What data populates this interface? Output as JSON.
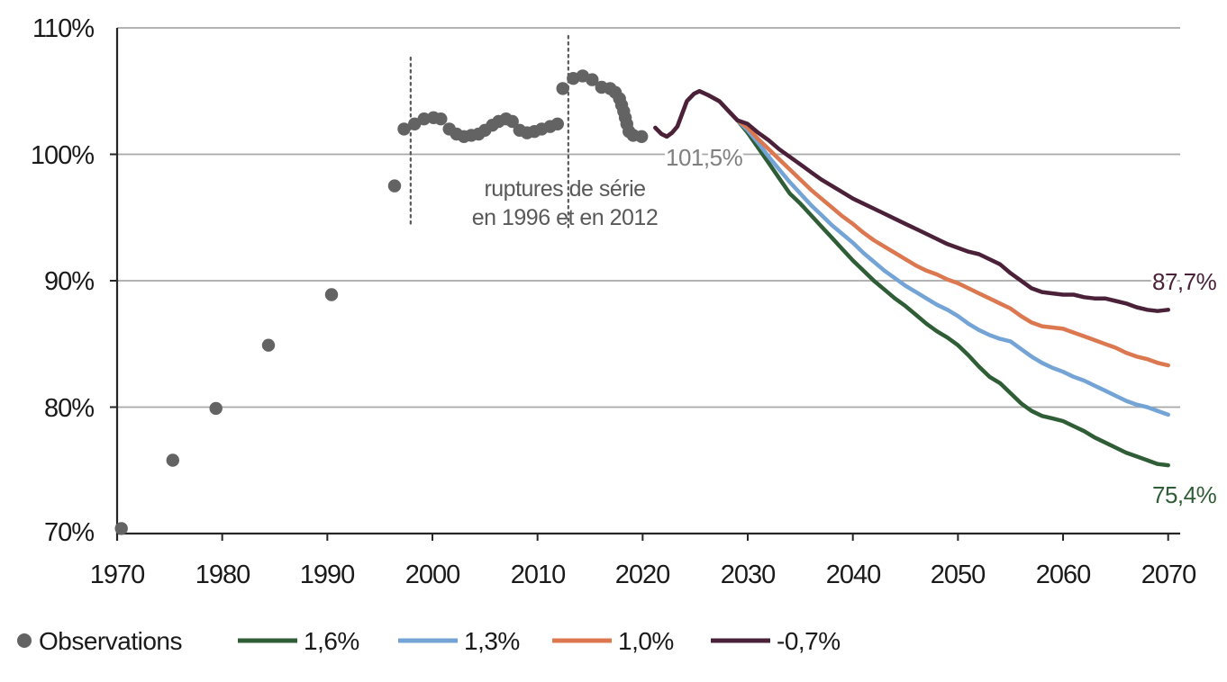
{
  "chart_data": {
    "type": "scatter",
    "subtype": "observations-with-projection-lines",
    "title": "",
    "xlabel": "",
    "ylabel": "",
    "x_range": [
      1970,
      2070
    ],
    "y_range": [
      70,
      110
    ],
    "y_unit": "%",
    "grid": "horizontal-only",
    "legend_position": "bottom",
    "yticks": [
      "110%",
      "100%",
      "90%",
      "80%",
      "70%"
    ],
    "ytick_values": [
      110,
      100,
      90,
      80,
      70
    ],
    "xticks": [
      "1970",
      "1980",
      "1990",
      "2000",
      "2010",
      "2020",
      "2030",
      "2040",
      "2050",
      "2060",
      "2070"
    ],
    "xtick_values": [
      1970,
      1980,
      1990,
      2000,
      2010,
      2020,
      2030,
      2040,
      2050,
      2060,
      2070
    ],
    "annotations": {
      "rupture_text_line1": "ruptures de série",
      "rupture_text_line2": "en 1996 et en 2012",
      "rupture_line_years": [
        1997.5,
        2012.5
      ],
      "projection_start_label": "101,5%",
      "end_label_high": "87,7%",
      "end_label_low": "75,4%"
    },
    "colors": {
      "observations": "#636363",
      "gridline": "#a8a8a8",
      "axis": "#262626",
      "annotation_gray": "#595959",
      "start_label_gray": "#7f7f7f"
    },
    "legend": [
      "Observations",
      "1,6%",
      "1,3%",
      "1,0%",
      "-0,7%"
    ],
    "observations": {
      "name": "Observations",
      "color": "#636363",
      "points": [
        [
          1970.4,
          70.4
        ],
        [
          1975.3,
          75.8
        ],
        [
          1979.4,
          79.9
        ],
        [
          1984.4,
          84.9
        ],
        [
          1990.4,
          88.9
        ],
        [
          1996.4,
          97.5
        ],
        [
          1997.3,
          102.0
        ],
        [
          1998.3,
          102.4
        ],
        [
          1999.2,
          102.8
        ],
        [
          2000.1,
          102.9
        ],
        [
          2000.8,
          102.8
        ],
        [
          2001.6,
          102.0
        ],
        [
          2002.3,
          101.6
        ],
        [
          2003.0,
          101.4
        ],
        [
          2003.7,
          101.5
        ],
        [
          2004.4,
          101.6
        ],
        [
          2005.0,
          101.9
        ],
        [
          2005.7,
          102.3
        ],
        [
          2006.3,
          102.6
        ],
        [
          2007.0,
          102.8
        ],
        [
          2007.6,
          102.6
        ],
        [
          2008.3,
          101.9
        ],
        [
          2009.0,
          101.7
        ],
        [
          2009.7,
          101.8
        ],
        [
          2010.4,
          102.0
        ],
        [
          2011.2,
          102.2
        ],
        [
          2011.9,
          102.4
        ],
        [
          2012.4,
          105.2
        ],
        [
          2013.4,
          106.0
        ],
        [
          2014.3,
          106.2
        ],
        [
          2015.2,
          105.9
        ],
        [
          2016.1,
          105.3
        ],
        [
          2016.9,
          105.2
        ],
        [
          2017.4,
          104.9
        ],
        [
          2017.8,
          104.4
        ],
        [
          2018.0,
          103.9
        ],
        [
          2018.2,
          103.4
        ],
        [
          2018.35,
          102.9
        ],
        [
          2018.5,
          102.4
        ],
        [
          2018.7,
          101.8
        ],
        [
          2019.1,
          101.5
        ],
        [
          2019.9,
          101.4
        ]
      ]
    },
    "projection_common_path": [
      [
        2021.2,
        102.1
      ],
      [
        2021.8,
        101.6
      ],
      [
        2022.3,
        101.4
      ],
      [
        2022.8,
        101.7
      ],
      [
        2023.3,
        102.2
      ],
      [
        2024.2,
        104.2
      ],
      [
        2024.9,
        104.8
      ],
      [
        2025.4,
        105.0
      ],
      [
        2026.2,
        104.7
      ],
      [
        2027.3,
        104.2
      ],
      [
        2028.2,
        103.4
      ],
      [
        2029,
        102.7
      ]
    ],
    "series": [
      {
        "name": "1,6%",
        "color": "#2f5e36",
        "end_value": 75.4,
        "points": [
          [
            2030,
            101.7
          ],
          [
            2031,
            100.5
          ],
          [
            2032,
            99.3
          ],
          [
            2033,
            98.1
          ],
          [
            2034,
            96.9
          ],
          [
            2035,
            96.1
          ],
          [
            2036,
            95.2
          ],
          [
            2037,
            94.3
          ],
          [
            2038,
            93.4
          ],
          [
            2039,
            92.5
          ],
          [
            2040,
            91.6
          ],
          [
            2041,
            90.8
          ],
          [
            2042,
            90.0
          ],
          [
            2043,
            89.3
          ],
          [
            2044,
            88.6
          ],
          [
            2045,
            88.0
          ],
          [
            2046,
            87.3
          ],
          [
            2047,
            86.6
          ],
          [
            2048,
            86.0
          ],
          [
            2049,
            85.5
          ],
          [
            2050,
            84.9
          ],
          [
            2051,
            84.1
          ],
          [
            2052,
            83.2
          ],
          [
            2053,
            82.4
          ],
          [
            2054,
            81.9
          ],
          [
            2055,
            81.1
          ],
          [
            2056,
            80.3
          ],
          [
            2057,
            79.7
          ],
          [
            2058,
            79.3
          ],
          [
            2059,
            79.1
          ],
          [
            2060,
            78.9
          ],
          [
            2061,
            78.5
          ],
          [
            2062,
            78.1
          ],
          [
            2063,
            77.6
          ],
          [
            2064,
            77.2
          ],
          [
            2065,
            76.8
          ],
          [
            2066,
            76.4
          ],
          [
            2067,
            76.1
          ],
          [
            2068,
            75.8
          ],
          [
            2069,
            75.5
          ],
          [
            2070,
            75.4
          ]
        ]
      },
      {
        "name": "1,3%",
        "color": "#74a3d6",
        "end_value": 79.4,
        "points": [
          [
            2030,
            101.9
          ],
          [
            2031,
            100.9
          ],
          [
            2032,
            99.8
          ],
          [
            2033,
            98.8
          ],
          [
            2034,
            97.8
          ],
          [
            2035,
            96.9
          ],
          [
            2036,
            96.0
          ],
          [
            2037,
            95.2
          ],
          [
            2038,
            94.4
          ],
          [
            2039,
            93.7
          ],
          [
            2040,
            93.0
          ],
          [
            2041,
            92.2
          ],
          [
            2042,
            91.5
          ],
          [
            2043,
            90.8
          ],
          [
            2044,
            90.2
          ],
          [
            2045,
            89.6
          ],
          [
            2046,
            89.1
          ],
          [
            2047,
            88.6
          ],
          [
            2048,
            88.1
          ],
          [
            2049,
            87.7
          ],
          [
            2050,
            87.2
          ],
          [
            2051,
            86.6
          ],
          [
            2052,
            86.1
          ],
          [
            2053,
            85.7
          ],
          [
            2054,
            85.4
          ],
          [
            2055,
            85.2
          ],
          [
            2056,
            84.6
          ],
          [
            2057,
            84.0
          ],
          [
            2058,
            83.5
          ],
          [
            2059,
            83.1
          ],
          [
            2060,
            82.8
          ],
          [
            2061,
            82.4
          ],
          [
            2062,
            82.1
          ],
          [
            2063,
            81.7
          ],
          [
            2064,
            81.3
          ],
          [
            2065,
            80.9
          ],
          [
            2066,
            80.5
          ],
          [
            2067,
            80.2
          ],
          [
            2068,
            80.0
          ],
          [
            2069,
            79.7
          ],
          [
            2070,
            79.4
          ]
        ]
      },
      {
        "name": "1,0%",
        "color": "#dc7850",
        "end_value": 83.3,
        "points": [
          [
            2030,
            102.1
          ],
          [
            2031,
            101.2
          ],
          [
            2032,
            100.4
          ],
          [
            2033,
            99.6
          ],
          [
            2034,
            98.8
          ],
          [
            2035,
            98.0
          ],
          [
            2036,
            97.2
          ],
          [
            2037,
            96.5
          ],
          [
            2038,
            95.8
          ],
          [
            2039,
            95.1
          ],
          [
            2040,
            94.5
          ],
          [
            2041,
            93.8
          ],
          [
            2042,
            93.2
          ],
          [
            2043,
            92.7
          ],
          [
            2044,
            92.2
          ],
          [
            2045,
            91.7
          ],
          [
            2046,
            91.2
          ],
          [
            2047,
            90.8
          ],
          [
            2048,
            90.5
          ],
          [
            2049,
            90.1
          ],
          [
            2050,
            89.8
          ],
          [
            2051,
            89.4
          ],
          [
            2052,
            89.0
          ],
          [
            2053,
            88.6
          ],
          [
            2054,
            88.2
          ],
          [
            2055,
            87.8
          ],
          [
            2056,
            87.2
          ],
          [
            2057,
            86.7
          ],
          [
            2058,
            86.4
          ],
          [
            2059,
            86.3
          ],
          [
            2060,
            86.2
          ],
          [
            2061,
            85.9
          ],
          [
            2062,
            85.6
          ],
          [
            2063,
            85.3
          ],
          [
            2064,
            85.0
          ],
          [
            2065,
            84.7
          ],
          [
            2066,
            84.3
          ],
          [
            2067,
            84.0
          ],
          [
            2068,
            83.8
          ],
          [
            2069,
            83.5
          ],
          [
            2070,
            83.3
          ]
        ]
      },
      {
        "name": "-0,7%",
        "color": "#4a2138",
        "end_value": 87.7,
        "points": [
          [
            2030,
            102.4
          ],
          [
            2031,
            101.7
          ],
          [
            2032,
            101.1
          ],
          [
            2033,
            100.4
          ],
          [
            2034,
            99.8
          ],
          [
            2035,
            99.2
          ],
          [
            2036,
            98.6
          ],
          [
            2037,
            98.0
          ],
          [
            2038,
            97.5
          ],
          [
            2039,
            97.0
          ],
          [
            2040,
            96.5
          ],
          [
            2041,
            96.1
          ],
          [
            2042,
            95.7
          ],
          [
            2043,
            95.3
          ],
          [
            2044,
            94.9
          ],
          [
            2045,
            94.5
          ],
          [
            2046,
            94.1
          ],
          [
            2047,
            93.7
          ],
          [
            2048,
            93.3
          ],
          [
            2049,
            92.9
          ],
          [
            2050,
            92.6
          ],
          [
            2051,
            92.3
          ],
          [
            2052,
            92.1
          ],
          [
            2053,
            91.7
          ],
          [
            2054,
            91.3
          ],
          [
            2055,
            90.6
          ],
          [
            2056,
            90.0
          ],
          [
            2057,
            89.4
          ],
          [
            2058,
            89.1
          ],
          [
            2059,
            89.0
          ],
          [
            2060,
            88.9
          ],
          [
            2061,
            88.9
          ],
          [
            2062,
            88.7
          ],
          [
            2063,
            88.6
          ],
          [
            2064,
            88.6
          ],
          [
            2065,
            88.4
          ],
          [
            2066,
            88.2
          ],
          [
            2067,
            87.9
          ],
          [
            2068,
            87.7
          ],
          [
            2069,
            87.6
          ],
          [
            2070,
            87.7
          ]
        ]
      }
    ]
  }
}
